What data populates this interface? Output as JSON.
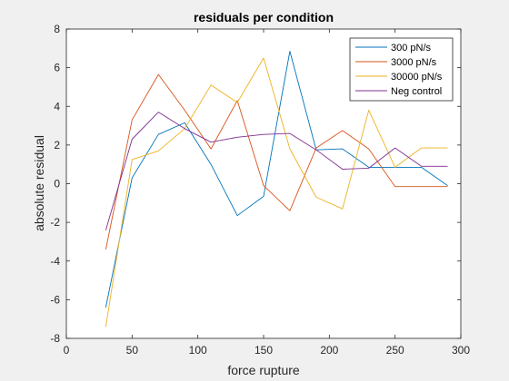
{
  "chart_data": {
    "type": "line",
    "title": "residuals per condition",
    "xlabel": "force rupture",
    "ylabel": "absolute residual",
    "xlim": [
      0,
      300
    ],
    "ylim": [
      -8,
      8
    ],
    "xticks": [
      0,
      50,
      100,
      150,
      200,
      250,
      300
    ],
    "yticks": [
      -8,
      -6,
      -4,
      -2,
      0,
      2,
      4,
      6,
      8
    ],
    "grid": false,
    "legend_position": "top-right",
    "x": [
      30,
      50,
      70,
      90,
      110,
      130,
      150,
      170,
      190,
      210,
      230,
      250,
      270,
      290
    ],
    "series": [
      {
        "name": "300 pN/s",
        "color": "#0072BD",
        "values": [
          -6.4,
          0.3,
          2.55,
          3.15,
          1.0,
          -1.65,
          -0.65,
          6.85,
          1.75,
          1.8,
          0.85,
          0.85,
          0.85,
          -0.1
        ]
      },
      {
        "name": "3000 pN/s",
        "color": "#D95319",
        "values": [
          -3.4,
          3.3,
          5.65,
          3.8,
          1.8,
          4.3,
          -0.1,
          -1.4,
          1.85,
          2.75,
          1.8,
          -0.15,
          -0.15,
          -0.15
        ]
      },
      {
        "name": "30000 pN/s",
        "color": "#EDB120",
        "values": [
          -7.4,
          1.25,
          1.7,
          2.85,
          5.1,
          4.2,
          6.5,
          1.8,
          -0.7,
          -1.3,
          3.8,
          0.85,
          1.85,
          1.85
        ]
      },
      {
        "name": "Neg control",
        "color": "#7E2F8E",
        "values": [
          -2.4,
          2.3,
          3.7,
          2.85,
          2.15,
          2.4,
          2.55,
          2.6,
          1.75,
          0.75,
          0.8,
          1.85,
          0.9,
          0.9
        ]
      }
    ]
  }
}
